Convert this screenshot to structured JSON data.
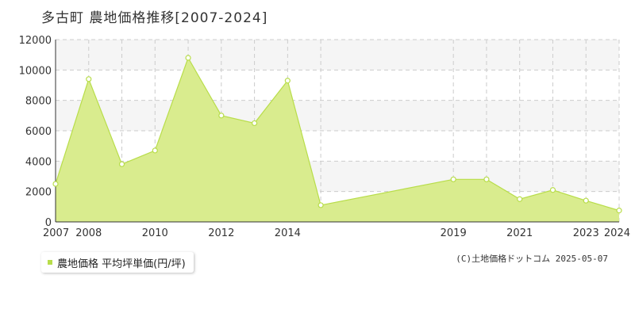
{
  "title": "多古町 農地価格推移[2007-2024]",
  "legend_label": "農地価格 平均坪単価(円/坪)",
  "copyright": "(C)土地価格ドットコム 2025-05-07",
  "colors": {
    "fill": "#d9ec8e",
    "line": "#b8dd4a",
    "marker_edge": "#b8dd4a",
    "grid": "#cccccc",
    "band": "#f5f5f5"
  },
  "chart_data": {
    "type": "area",
    "title": "",
    "xlabel": "",
    "ylabel": "",
    "ylim": [
      0,
      12000
    ],
    "yticks": [
      0,
      2000,
      4000,
      6000,
      8000,
      10000,
      12000
    ],
    "xlim": [
      2007,
      2024
    ],
    "xticks": [
      2007,
      2008,
      2010,
      2012,
      2014,
      2019,
      2021,
      2023,
      2024
    ],
    "grid": true,
    "legend": "bottom-left",
    "series": [
      {
        "name": "農地価格 平均坪単価(円/坪)",
        "x": [
          2007,
          2008,
          2009,
          2010,
          2011,
          2012,
          2013,
          2014,
          2015,
          2019,
          2020,
          2021,
          2022,
          2023,
          2024
        ],
        "values": [
          2500,
          9400,
          3800,
          4700,
          10800,
          7000,
          6500,
          9300,
          1100,
          2800,
          2800,
          1500,
          2100,
          1400,
          750
        ]
      }
    ]
  }
}
